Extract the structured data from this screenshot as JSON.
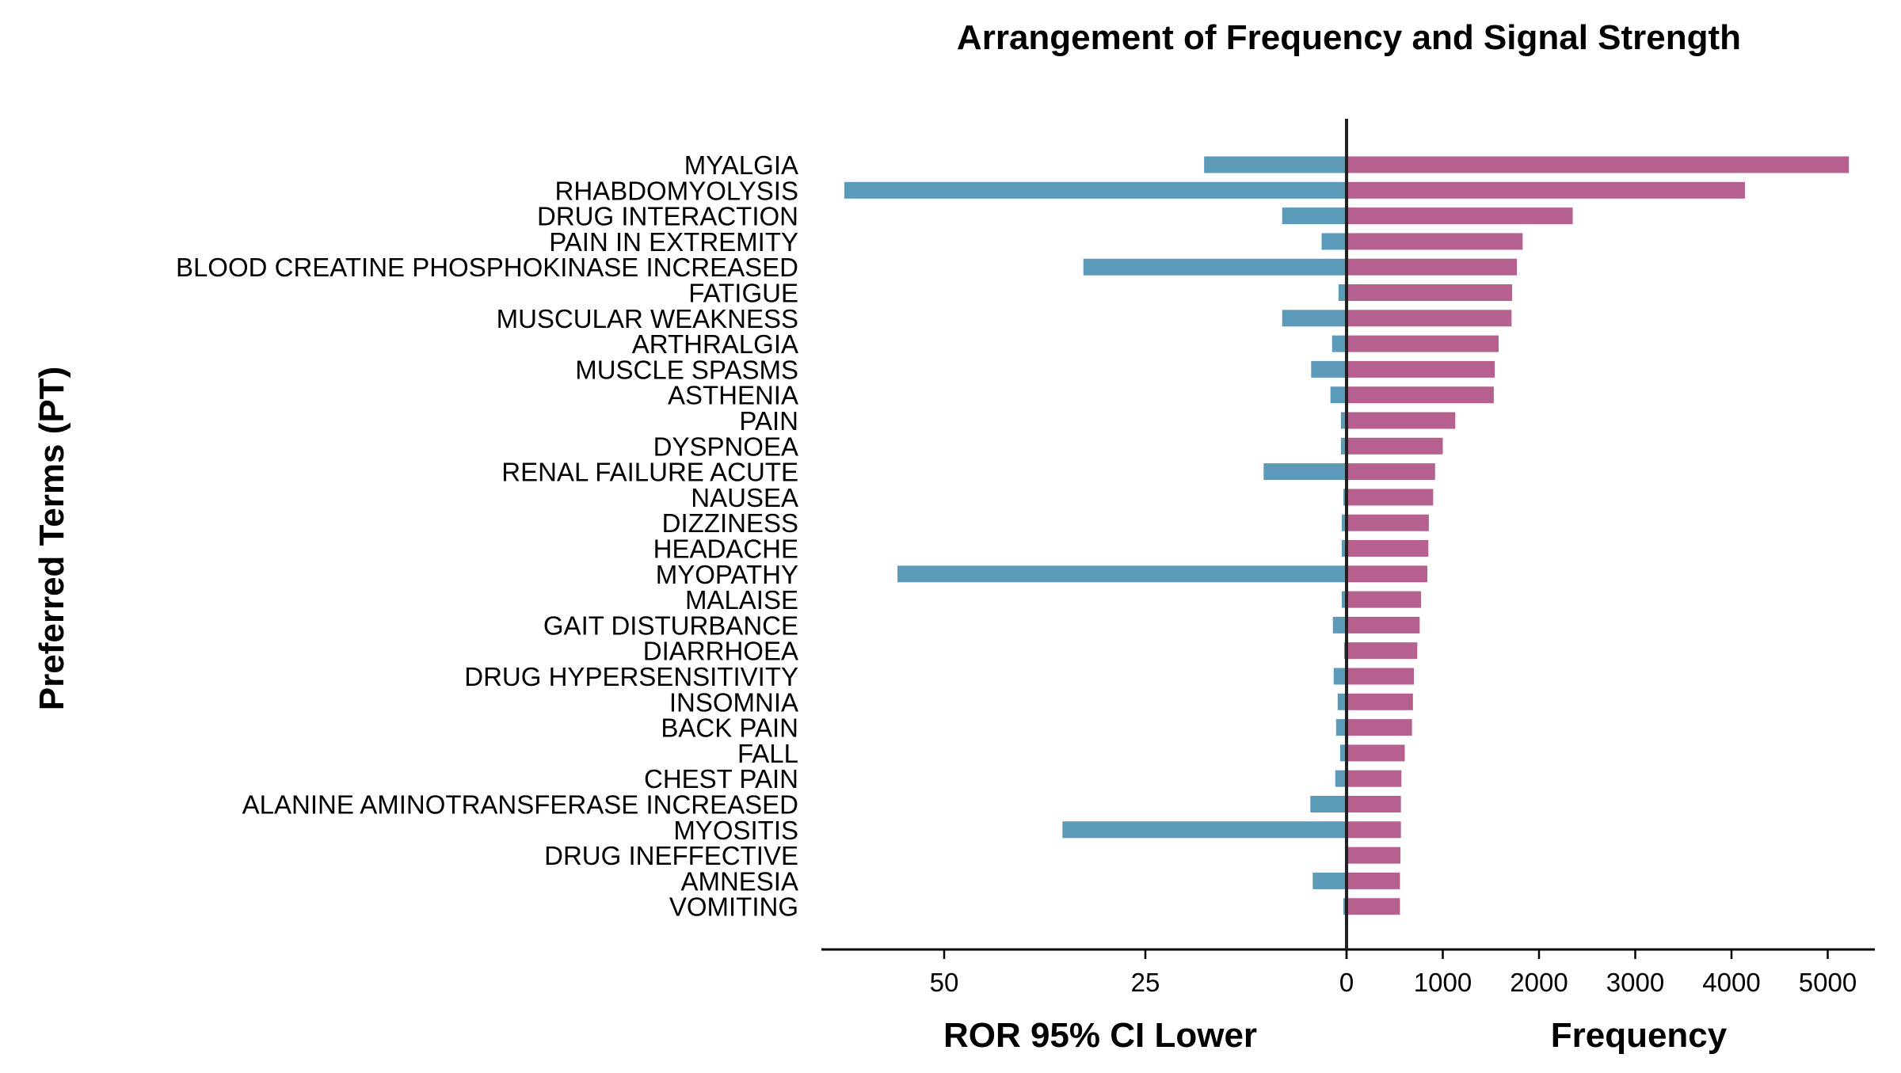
{
  "chart_data": {
    "type": "bar",
    "orientation": "horizontal-diverging",
    "title": "Arrangement of Frequency and Signal Strength",
    "ylabel": "Preferred Terms (PT)",
    "categories": [
      "MYALGIA",
      "RHABDOMYOLYSIS",
      "DRUG INTERACTION",
      "PAIN IN EXTREMITY",
      "BLOOD CREATINE PHOSPHOKINASE INCREASED",
      "FATIGUE",
      "MUSCULAR WEAKNESS",
      "ARTHRALGIA",
      "MUSCLE SPASMS",
      "ASTHENIA",
      "PAIN",
      "DYSPNOEA",
      "RENAL FAILURE ACUTE",
      "NAUSEA",
      "DIZZINESS",
      "HEADACHE",
      "MYOPATHY",
      "MALAISE",
      "GAIT DISTURBANCE",
      "DIARRHOEA",
      "DRUG HYPERSENSITIVITY",
      "INSOMNIA",
      "BACK PAIN",
      "FALL",
      "CHEST PAIN",
      "ALANINE AMINOTRANSFERASE INCREASED",
      "MYOSITIS",
      "DRUG INEFFECTIVE",
      "AMNESIA",
      "VOMITING"
    ],
    "series": [
      {
        "side": "left",
        "xlabel": "ROR 95% CI Lower",
        "color": "#5b9bb9",
        "xlim": [
          0,
          65.5
        ],
        "ticks": [
          "50",
          "25",
          "0"
        ],
        "tick_values": [
          50,
          25,
          0
        ],
        "values": [
          17.7,
          62.4,
          8.0,
          3.1,
          32.7,
          1.0,
          8.0,
          1.8,
          4.4,
          2.0,
          0.7,
          0.7,
          10.3,
          0.4,
          0.6,
          0.6,
          55.8,
          0.6,
          1.7,
          0.3,
          1.6,
          1.1,
          1.3,
          0.8,
          1.4,
          4.5,
          35.3,
          0.0,
          4.2,
          0.4
        ]
      },
      {
        "side": "right",
        "xlabel": "Frequency",
        "color": "#b5608e",
        "xlim": [
          0,
          5400
        ],
        "ticks": [
          "0",
          "1000",
          "2000",
          "3000",
          "4000",
          "5000"
        ],
        "tick_values": [
          0,
          1000,
          2000,
          3000,
          4000,
          5000
        ],
        "values": [
          5220,
          4140,
          2350,
          1830,
          1770,
          1720,
          1715,
          1580,
          1540,
          1530,
          1130,
          1000,
          920,
          900,
          855,
          850,
          840,
          775,
          760,
          735,
          700,
          690,
          680,
          605,
          570,
          565,
          565,
          560,
          555,
          555
        ]
      }
    ]
  }
}
